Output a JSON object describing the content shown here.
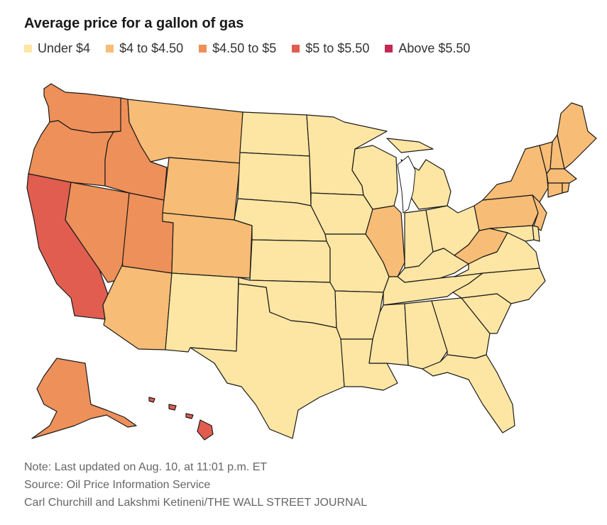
{
  "title": "Average price for a gallon of gas",
  "legend": [
    {
      "label": "Under $4",
      "color": "#fde6a3"
    },
    {
      "label": "$4 to $4.50",
      "color": "#f7bc76"
    },
    {
      "label": "$4.50 to $5",
      "color": "#ee9059"
    },
    {
      "label": "$5 to $5.50",
      "color": "#e05d50"
    },
    {
      "label": "Above $5.50",
      "color": "#c22a55"
    }
  ],
  "states": {
    "WA": "$4.50 to $5",
    "OR": "$4.50 to $5",
    "CA": "$5 to $5.50",
    "NV": "$4.50 to $5",
    "ID": "$4.50 to $5",
    "UT": "$4.50 to $5",
    "AZ": "$4 to $4.50",
    "MT": "$4 to $4.50",
    "WY": "$4 to $4.50",
    "CO": "$4 to $4.50",
    "NM": "Under $4",
    "ND": "Under $4",
    "SD": "Under $4",
    "NE": "Under $4",
    "KS": "Under $4",
    "OK": "Under $4",
    "TX": "Under $4",
    "MN": "Under $4",
    "IA": "Under $4",
    "MO": "Under $4",
    "AR": "Under $4",
    "LA": "Under $4",
    "WI": "Under $4",
    "IL": "$4 to $4.50",
    "MI": "Under $4",
    "IN": "Under $4",
    "OH": "Under $4",
    "KY": "Under $4",
    "TN": "Under $4",
    "MS": "Under $4",
    "AL": "Under $4",
    "GA": "Under $4",
    "FL": "Under $4",
    "SC": "Under $4",
    "NC": "Under $4",
    "VA": "Under $4",
    "WV": "$4 to $4.50",
    "PA": "$4 to $4.50",
    "NY": "$4 to $4.50",
    "VT": "$4 to $4.50",
    "NH": "$4 to $4.50",
    "ME": "$4 to $4.50",
    "MA": "$4 to $4.50",
    "CT": "$4 to $4.50",
    "RI": "$4 to $4.50",
    "NJ": "$4 to $4.50",
    "DE": "Under $4",
    "MD": "Under $4",
    "AK": "$4.50 to $5",
    "HI": "$5 to $5.50"
  },
  "notes": {
    "note": "Note: Last updated on Aug. 10, at 11:01 p.m. ET",
    "source": "Source: Oil Price Information Service",
    "credit": "Carl Churchill and Lakshmi Ketineni/THE WALL STREET JOURNAL"
  }
}
